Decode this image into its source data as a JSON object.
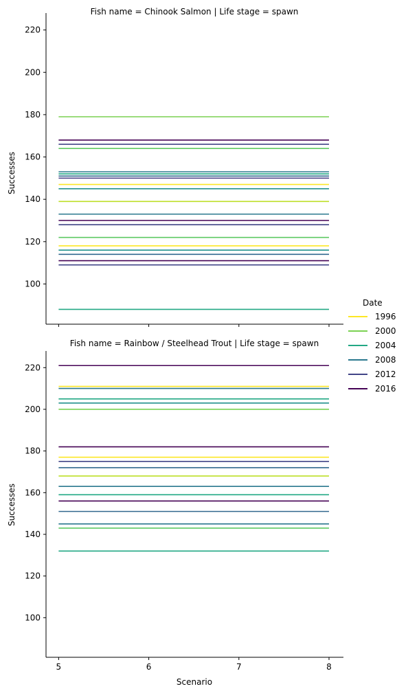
{
  "chart_data": {
    "type": "line",
    "facet_grid": true,
    "shared_y_axis": true,
    "ylim": [
      81,
      228
    ],
    "xlim": [
      4.86,
      8.16
    ],
    "xlabel": "Scenario",
    "ylabel": "Successes",
    "x_ticks": [
      5,
      6,
      7,
      8
    ],
    "y_ticks": [
      100,
      120,
      140,
      160,
      180,
      200,
      220
    ],
    "legend": {
      "title": "Date",
      "placement": "right",
      "entries": [
        {
          "label": "1996",
          "color": "#fde725"
        },
        {
          "label": "2000",
          "color": "#7ad151"
        },
        {
          "label": "2004",
          "color": "#22a884"
        },
        {
          "label": "2008",
          "color": "#2a788e"
        },
        {
          "label": "2012",
          "color": "#414487"
        },
        {
          "label": "2016",
          "color": "#440154"
        }
      ]
    },
    "panels": [
      {
        "title": "Fish name = Chinook Salmon | Life stage = spawn",
        "lines": [
          {
            "y": 179,
            "color": "#7ad151"
          },
          {
            "y": 168,
            "color": "#440154"
          },
          {
            "y": 166,
            "color": "#414487"
          },
          {
            "y": 164,
            "color": "#5ec962"
          },
          {
            "y": 153,
            "color": "#2a788e"
          },
          {
            "y": 152,
            "color": "#22a884"
          },
          {
            "y": 151,
            "color": "#31688e"
          },
          {
            "y": 150,
            "color": "#443a83"
          },
          {
            "y": 147,
            "color": "#fde725"
          },
          {
            "y": 145,
            "color": "#21918c"
          },
          {
            "y": 139,
            "color": "#bddf26"
          },
          {
            "y": 133,
            "color": "#2a788e"
          },
          {
            "y": 130,
            "color": "#440154"
          },
          {
            "y": 128,
            "color": "#414487"
          },
          {
            "y": 122,
            "color": "#5ec962"
          },
          {
            "y": 118,
            "color": "#fde725"
          },
          {
            "y": 116,
            "color": "#21918c"
          },
          {
            "y": 114,
            "color": "#31688e"
          },
          {
            "y": 111,
            "color": "#440154"
          },
          {
            "y": 109,
            "color": "#414487"
          },
          {
            "y": 88,
            "color": "#22a884"
          }
        ]
      },
      {
        "title": "Fish name = Rainbow / Steelhead Trout | Life stage = spawn",
        "lines": [
          {
            "y": 221,
            "color": "#440154"
          },
          {
            "y": 211,
            "color": "#fde725"
          },
          {
            "y": 210,
            "color": "#2a788e"
          },
          {
            "y": 205,
            "color": "#22a884"
          },
          {
            "y": 203,
            "color": "#21918c"
          },
          {
            "y": 200,
            "color": "#7ad151"
          },
          {
            "y": 182,
            "color": "#440154"
          },
          {
            "y": 177,
            "color": "#fde725"
          },
          {
            "y": 175,
            "color": "#414487"
          },
          {
            "y": 172,
            "color": "#31688e"
          },
          {
            "y": 168,
            "color": "#bddf26"
          },
          {
            "y": 163,
            "color": "#2a788e"
          },
          {
            "y": 159,
            "color": "#22a884"
          },
          {
            "y": 156,
            "color": "#440154"
          },
          {
            "y": 151,
            "color": "#31688e"
          },
          {
            "y": 145,
            "color": "#2a788e"
          },
          {
            "y": 143,
            "color": "#5ec962"
          },
          {
            "y": 132,
            "color": "#22a884"
          }
        ]
      }
    ]
  }
}
